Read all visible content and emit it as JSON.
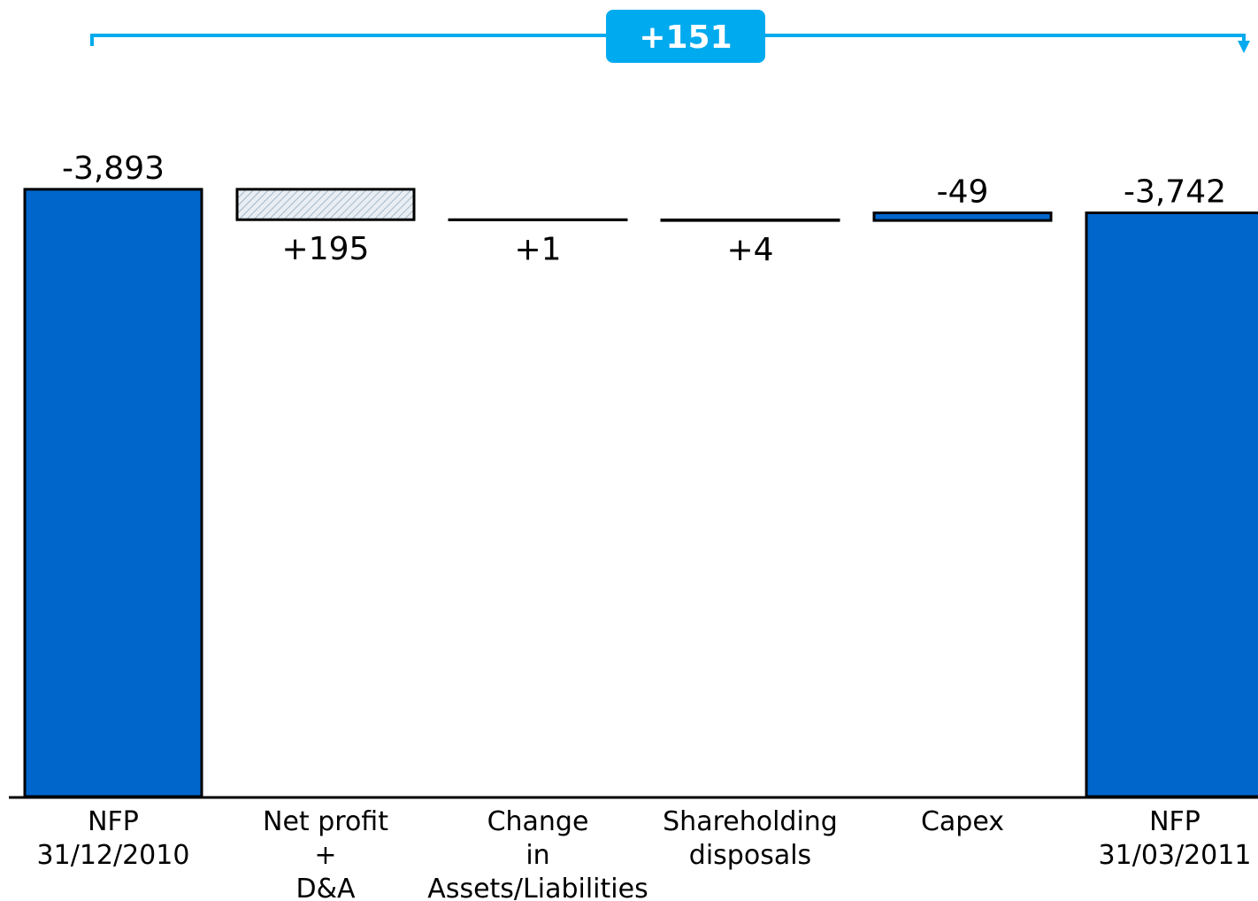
{
  "chart_data": {
    "type": "waterfall",
    "annotations": [
      {
        "text": "+151"
      }
    ],
    "categories": [
      [
        "NFP",
        "31/12/2010"
      ],
      [
        "Net profit",
        "+",
        "D&A"
      ],
      [
        "Change",
        "in",
        "Assets/Liabilities"
      ],
      [
        "Shareholding",
        "disposals"
      ],
      [
        "Capex"
      ],
      [
        "NFP",
        "31/03/2011"
      ]
    ],
    "values": [
      -3893,
      195,
      1,
      4,
      -49,
      -3742
    ],
    "value_labels": [
      "-3,893",
      "+195",
      "+1",
      "+4",
      "-49",
      "-3,742"
    ],
    "totals": [
      true,
      false,
      false,
      false,
      false,
      true
    ],
    "color": "#0066cc",
    "increase_color": "#dbe6ee",
    "annotation_color": "#00aaee",
    "ylim": [
      0,
      -4000
    ]
  }
}
